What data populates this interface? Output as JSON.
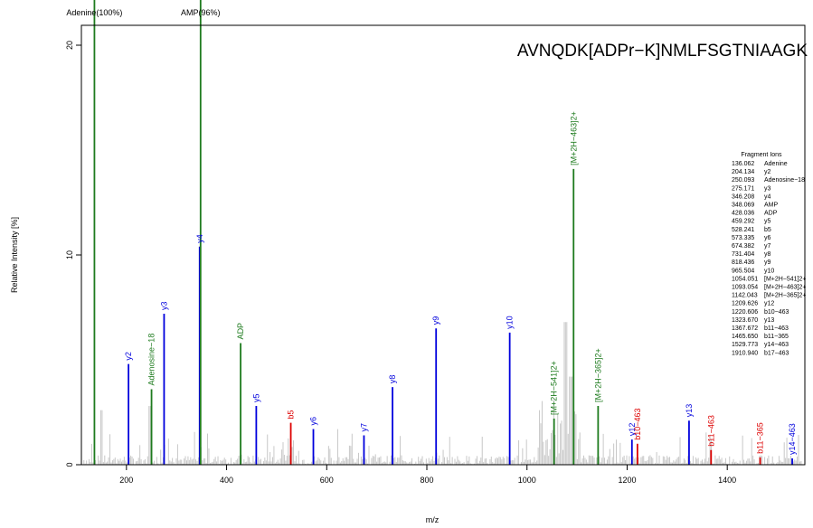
{
  "chart_data": {
    "type": "bar",
    "title": "AVNQDK[ADPr−K]NMLFSGTNIAAGK",
    "xlabel": "m/z",
    "ylabel": "Relative Intensity [%]",
    "xlim": [
      110,
      1555
    ],
    "ylim": [
      0,
      20.8
    ],
    "x_ticks": [
      200,
      400,
      600,
      800,
      1000,
      1200,
      1400
    ],
    "y_ticks": [
      0,
      10,
      20
    ],
    "colors": {
      "y": "#0000dd",
      "b": "#dd0000",
      "other": "#1e7b1e",
      "background": "#c8c8c8"
    },
    "series": [
      {
        "name": "y",
        "peaks": [
          {
            "x": 204.134,
            "y": 4.8,
            "label": "y2"
          },
          {
            "x": 275.171,
            "y": 7.2,
            "label": "y3"
          },
          {
            "x": 346.208,
            "y": 10.4,
            "label": "y4"
          },
          {
            "x": 459.292,
            "y": 2.8,
            "label": "y5"
          },
          {
            "x": 573.335,
            "y": 1.7,
            "label": "y6"
          },
          {
            "x": 674.382,
            "y": 1.4,
            "label": "y7"
          },
          {
            "x": 731.404,
            "y": 3.7,
            "label": "y8"
          },
          {
            "x": 818.436,
            "y": 6.5,
            "label": "y9"
          },
          {
            "x": 965.504,
            "y": 6.3,
            "label": "y10"
          },
          {
            "x": 1209.626,
            "y": 1.2,
            "label": "y12"
          },
          {
            "x": 1323.67,
            "y": 2.1,
            "label": "y13"
          },
          {
            "x": 1529.773,
            "y": 0.3,
            "label": "y14−463"
          }
        ]
      },
      {
        "name": "b",
        "peaks": [
          {
            "x": 528.241,
            "y": 2.0,
            "label": "b5"
          },
          {
            "x": 1220.606,
            "y": 1.0,
            "label": "b10−463"
          },
          {
            "x": 1367.672,
            "y": 0.7,
            "label": "b11−463"
          },
          {
            "x": 1465.65,
            "y": 0.35,
            "label": "b11−365"
          }
        ]
      },
      {
        "name": "other",
        "peaks": [
          {
            "x": 136.062,
            "y": 20.8,
            "label": "Adenine(100%)",
            "clipped": true
          },
          {
            "x": 250.093,
            "y": 3.6,
            "label": "Adenosine−18"
          },
          {
            "x": 348.069,
            "y": 20.8,
            "label": "AMP(96%)",
            "clipped": true
          },
          {
            "x": 428.036,
            "y": 5.8,
            "label": "ADP"
          },
          {
            "x": 1054.051,
            "y": 2.2,
            "label": "[M+2H−541]2+"
          },
          {
            "x": 1093.054,
            "y": 14.1,
            "label": "[M+2H−463]2+"
          },
          {
            "x": 1142.043,
            "y": 2.8,
            "label": "[M+2H−365]2+"
          }
        ]
      }
    ],
    "legend": {
      "title": "Fragment Ions",
      "position": "right",
      "rows": [
        [
          "136.062",
          "Adenine"
        ],
        [
          "204.134",
          "y2"
        ],
        [
          "250.093",
          "Adenosine−18"
        ],
        [
          "275.171",
          "y3"
        ],
        [
          "346.208",
          "y4"
        ],
        [
          "348.069",
          "AMP"
        ],
        [
          "428.036",
          "ADP"
        ],
        [
          "459.292",
          "y5"
        ],
        [
          "528.241",
          "b5"
        ],
        [
          "573.335",
          "y6"
        ],
        [
          "674.382",
          "y7"
        ],
        [
          "731.404",
          "y8"
        ],
        [
          "818.436",
          "y9"
        ],
        [
          "965.504",
          "y10"
        ],
        [
          "1054.051",
          "[M+2H−541]2+"
        ],
        [
          "1093.054",
          "[M+2H−463]2+"
        ],
        [
          "1142.043",
          "[M+2H−365]2+"
        ],
        [
          "1209.626",
          "y12"
        ],
        [
          "1220.606",
          "b10−463"
        ],
        [
          "1323.670",
          "y13"
        ],
        [
          "1367.672",
          "b11−463"
        ],
        [
          "1465.650",
          "b11−365"
        ],
        [
          "1529.773",
          "y14−463"
        ],
        [
          "1910.940",
          "b17−463"
        ]
      ]
    }
  }
}
